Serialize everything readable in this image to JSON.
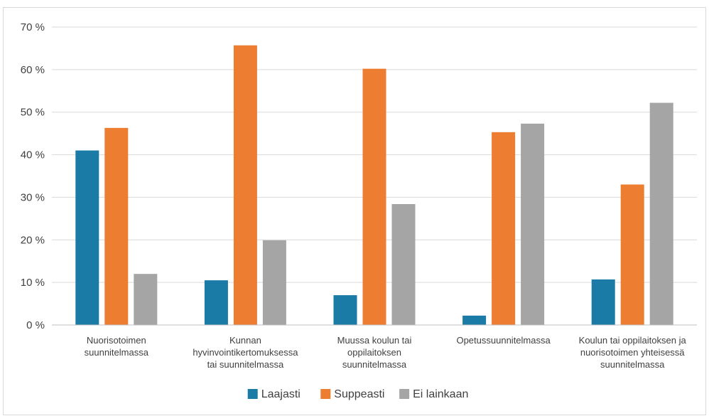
{
  "chart_data": {
    "type": "bar",
    "y_unit_suffix": " %",
    "ylim": [
      0,
      70
    ],
    "y_ticks": [
      0,
      10,
      20,
      30,
      40,
      50,
      60,
      70
    ],
    "grid": true,
    "legend_position": "bottom",
    "categories": [
      [
        "Nuorisotoimen",
        "suunnitelmassa"
      ],
      [
        "Kunnan",
        "hyvinvointikertomuksessa",
        "tai suunnitelmassa"
      ],
      [
        "Muussa koulun tai",
        "oppilaitoksen",
        "suunnitelmassa"
      ],
      [
        "Opetussuunnitelmassa"
      ],
      [
        "Koulun tai oppilaitoksen ja",
        "nuorisotoimen yhteisessä",
        "suunnitelmassa"
      ]
    ],
    "series": [
      {
        "name": "Laajasti",
        "color": "#1a7ba6",
        "values": [
          41,
          10.5,
          7,
          2.2,
          10.7
        ]
      },
      {
        "name": "Suppeasti",
        "color": "#ed7d31",
        "values": [
          46.3,
          65.7,
          60.2,
          45.3,
          33
        ]
      },
      {
        "name": "Ei lainkaan",
        "color": "#a5a5a5",
        "values": [
          12,
          19.9,
          28.4,
          47.3,
          52.2
        ]
      }
    ]
  }
}
